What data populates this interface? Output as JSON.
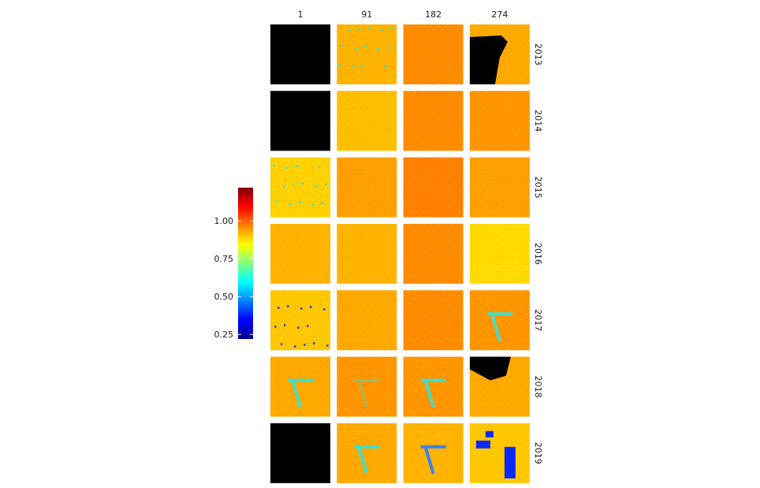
{
  "chart_data": {
    "type": "heatmap",
    "title": "",
    "xlabel": "",
    "ylabel": "",
    "facet_columns": [
      "1",
      "91",
      "182",
      "274"
    ],
    "facet_rows": [
      "2013",
      "2014",
      "2015",
      "2016",
      "2017",
      "2018",
      "2019"
    ],
    "colorbar": {
      "colormap": "jet",
      "range": [
        0.22,
        1.22
      ],
      "ticks": [
        0.25,
        0.5,
        0.75,
        1.0
      ],
      "tick_labels": [
        "0.25",
        "0.50",
        "0.75",
        "1.00"
      ]
    },
    "panels": [
      {
        "year": "2013",
        "day": "1",
        "state": "missing"
      },
      {
        "year": "2013",
        "day": "91",
        "state": "data",
        "mean": 0.92,
        "notes": "minor cyan speckles"
      },
      {
        "year": "2013",
        "day": "182",
        "state": "data",
        "mean": 0.96
      },
      {
        "year": "2013",
        "day": "274",
        "state": "partial",
        "mean": 0.93,
        "notes": "large masked area upper-left"
      },
      {
        "year": "2014",
        "day": "1",
        "state": "missing"
      },
      {
        "year": "2014",
        "day": "91",
        "state": "data",
        "mean": 0.91
      },
      {
        "year": "2014",
        "day": "182",
        "state": "data",
        "mean": 0.96
      },
      {
        "year": "2014",
        "day": "274",
        "state": "data",
        "mean": 0.95
      },
      {
        "year": "2015",
        "day": "1",
        "state": "data",
        "mean": 0.89,
        "notes": "cyan speckles"
      },
      {
        "year": "2015",
        "day": "91",
        "state": "data",
        "mean": 0.94
      },
      {
        "year": "2015",
        "day": "182",
        "state": "data",
        "mean": 0.97
      },
      {
        "year": "2015",
        "day": "274",
        "state": "data",
        "mean": 0.94
      },
      {
        "year": "2016",
        "day": "1",
        "state": "data",
        "mean": 0.92
      },
      {
        "year": "2016",
        "day": "91",
        "state": "data",
        "mean": 0.92
      },
      {
        "year": "2016",
        "day": "182",
        "state": "data",
        "mean": 0.96
      },
      {
        "year": "2016",
        "day": "274",
        "state": "data",
        "mean": 0.88
      },
      {
        "year": "2017",
        "day": "1",
        "state": "data",
        "mean": 0.9,
        "notes": "blue speckles"
      },
      {
        "year": "2017",
        "day": "91",
        "state": "data",
        "mean": 0.93
      },
      {
        "year": "2017",
        "day": "182",
        "state": "data",
        "mean": 0.96
      },
      {
        "year": "2017",
        "day": "274",
        "state": "data",
        "mean": 0.95,
        "notes": "cyan V-shaped feature"
      },
      {
        "year": "2018",
        "day": "1",
        "state": "data",
        "mean": 0.93,
        "notes": "cyan V-shaped feature"
      },
      {
        "year": "2018",
        "day": "91",
        "state": "data",
        "mean": 0.95,
        "notes": "faint V-shaped feature"
      },
      {
        "year": "2018",
        "day": "182",
        "state": "data",
        "mean": 0.95,
        "notes": "cyan V-shaped feature"
      },
      {
        "year": "2018",
        "day": "274",
        "state": "partial",
        "mean": 0.93,
        "notes": "masked area top"
      },
      {
        "year": "2019",
        "day": "1",
        "state": "missing"
      },
      {
        "year": "2019",
        "day": "91",
        "state": "data",
        "mean": 0.93,
        "notes": "cyan V-shaped feature"
      },
      {
        "year": "2019",
        "day": "182",
        "state": "data",
        "mean": 0.92,
        "notes": "cyan/blue V-shaped feature"
      },
      {
        "year": "2019",
        "day": "274",
        "state": "data",
        "mean": 0.9,
        "notes": "blue patches"
      }
    ],
    "legend": "left",
    "grid": false
  }
}
